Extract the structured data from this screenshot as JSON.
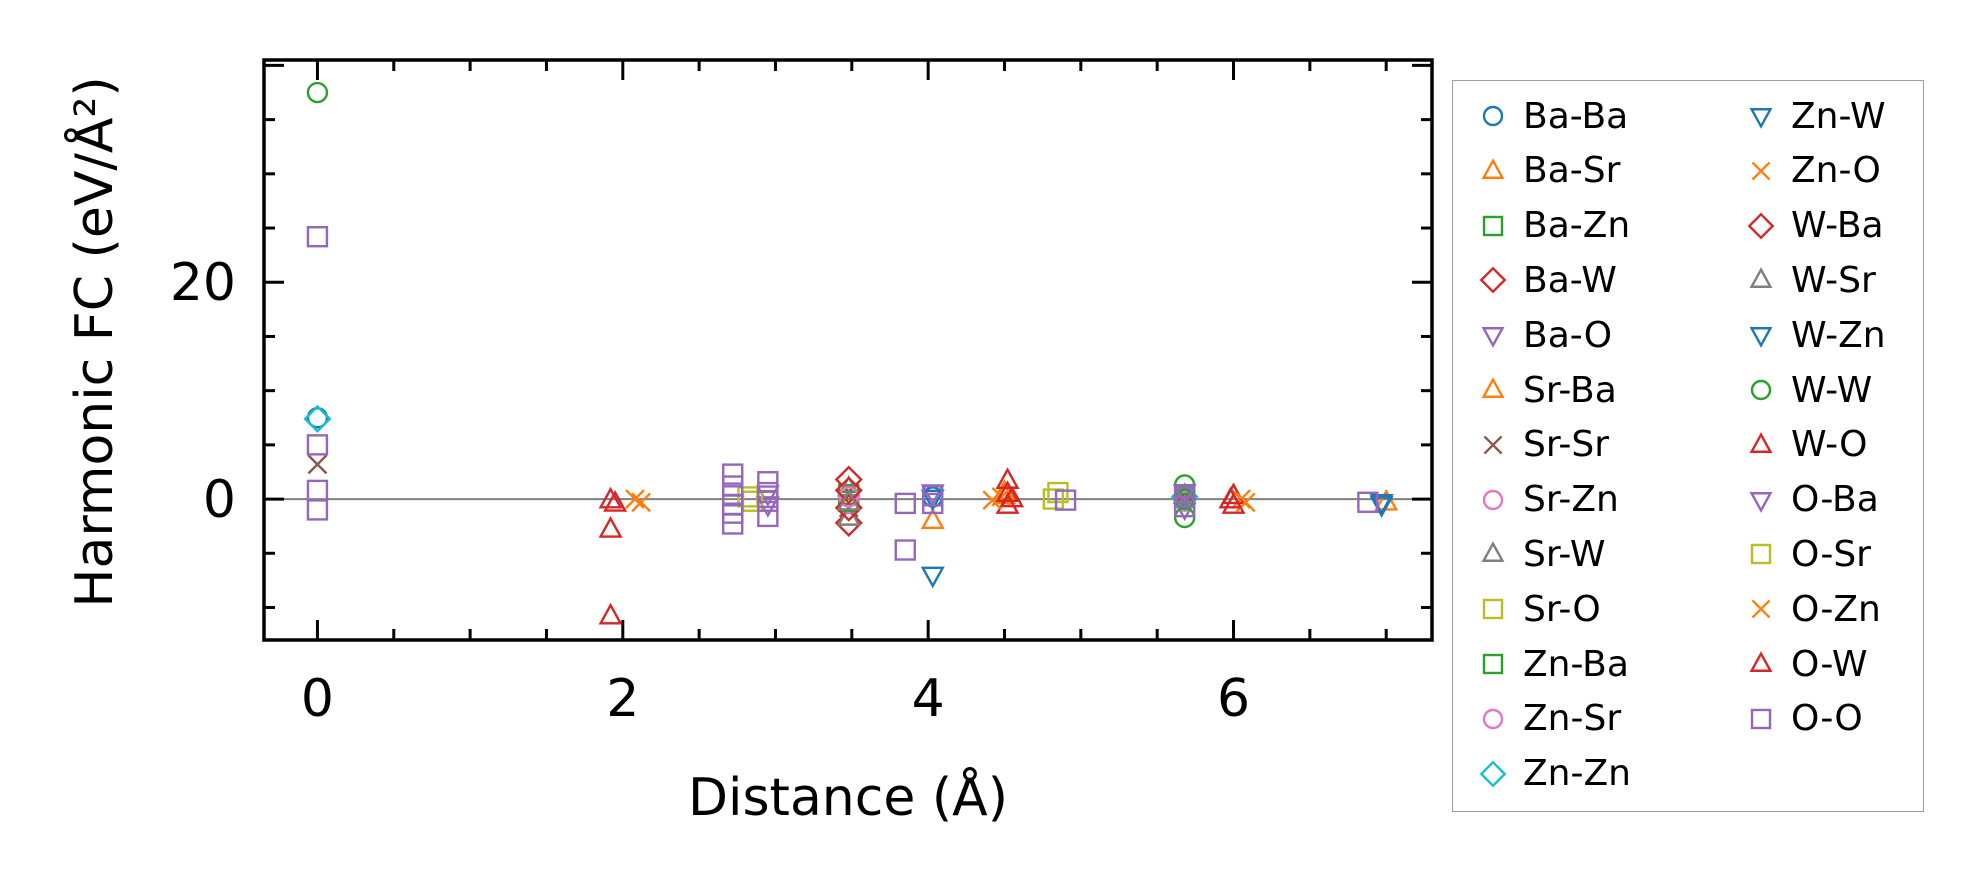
{
  "chart_data": {
    "type": "scatter",
    "title": "",
    "xlabel": "Distance (Å)",
    "ylabel": "Harmonic FC (eV/Å²)",
    "xlim": [
      -0.35,
      7.3
    ],
    "ylim": [
      -13,
      40.5
    ],
    "xticks": [
      0,
      2,
      4,
      6
    ],
    "xtick_labels": [
      "0",
      "2",
      "4",
      "6"
    ],
    "yticks": [
      0,
      20
    ],
    "ytick_labels": [
      "0",
      "20"
    ],
    "zero_line": true,
    "legend_placement": "outside-right",
    "series": [
      {
        "name": "Ba-Ba",
        "marker": "circle",
        "color": "#1f77b4",
        "points": [
          [
            0,
            7.5
          ],
          [
            4.03,
            0.2
          ]
        ]
      },
      {
        "name": "Ba-Sr",
        "marker": "triangle-up",
        "color": "#ff7f0e",
        "points": [
          [
            4.03,
            -2.0
          ],
          [
            4.5,
            0.3
          ]
        ]
      },
      {
        "name": "Ba-Zn",
        "marker": "square",
        "color": "#2ca02c",
        "points": [
          [
            3.48,
            0.4
          ],
          [
            5.68,
            0.2
          ]
        ]
      },
      {
        "name": "Ba-W",
        "marker": "diamond",
        "color": "#d62728",
        "points": [
          [
            3.48,
            1.8
          ],
          [
            3.48,
            -2.2
          ]
        ]
      },
      {
        "name": "Ba-O",
        "marker": "triangle-down",
        "color": "#9467bd",
        "points": [
          [
            2.95,
            0.5
          ],
          [
            4.03,
            0.6
          ],
          [
            5.68,
            -0.8
          ]
        ]
      },
      {
        "name": "Sr-Ba",
        "marker": "triangle-up",
        "color": "#ff7f0e",
        "points": [
          [
            4.5,
            0.6
          ],
          [
            7.0,
            -0.3
          ]
        ]
      },
      {
        "name": "Sr-Sr",
        "marker": "x",
        "color": "#8c564b",
        "points": [
          [
            0,
            3.2
          ],
          [
            3.48,
            -0.8
          ],
          [
            5.68,
            0.5
          ]
        ]
      },
      {
        "name": "Sr-Zn",
        "marker": "circle",
        "color": "#e377c2",
        "points": [
          [
            3.48,
            -0.4
          ],
          [
            5.68,
            -0.2
          ]
        ]
      },
      {
        "name": "Sr-W",
        "marker": "triangle-up",
        "color": "#7f7f7f",
        "points": [
          [
            3.48,
            1.0
          ],
          [
            3.48,
            -1.7
          ]
        ]
      },
      {
        "name": "Sr-O",
        "marker": "square",
        "color": "#bcbd22",
        "points": [
          [
            2.82,
            0.2
          ],
          [
            4.85,
            0.6
          ]
        ]
      },
      {
        "name": "Zn-Ba",
        "marker": "square",
        "color": "#2ca02c",
        "points": [
          [
            3.48,
            -0.2
          ],
          [
            5.68,
            0.4
          ]
        ]
      },
      {
        "name": "Zn-Sr",
        "marker": "circle",
        "color": "#e377c2",
        "points": [
          [
            3.48,
            0.2
          ],
          [
            5.68,
            0.0
          ]
        ]
      },
      {
        "name": "Zn-Zn",
        "marker": "diamond",
        "color": "#17becf",
        "points": [
          [
            0,
            7.4
          ],
          [
            5.68,
            0.2
          ]
        ]
      },
      {
        "name": "Zn-W",
        "marker": "triangle-down",
        "color": "#1f77b4",
        "points": [
          [
            4.03,
            -7.0
          ],
          [
            6.97,
            -0.3
          ]
        ]
      },
      {
        "name": "Zn-O",
        "marker": "x",
        "color": "#ff7f0e",
        "points": [
          [
            2.08,
            0.0
          ],
          [
            4.48,
            0.2
          ],
          [
            6.05,
            0.0
          ]
        ]
      },
      {
        "name": "W-Ba",
        "marker": "diamond",
        "color": "#d62728",
        "points": [
          [
            3.48,
            0.8
          ],
          [
            3.48,
            -0.8
          ]
        ]
      },
      {
        "name": "W-Sr",
        "marker": "triangle-up",
        "color": "#7f7f7f",
        "points": [
          [
            3.48,
            -0.3
          ],
          [
            5.68,
            0.3
          ]
        ]
      },
      {
        "name": "W-Zn",
        "marker": "triangle-down",
        "color": "#1f77b4",
        "points": [
          [
            4.03,
            0.1
          ],
          [
            6.97,
            -0.5
          ]
        ]
      },
      {
        "name": "W-W",
        "marker": "circle",
        "color": "#2ca02c",
        "points": [
          [
            0,
            37.5
          ],
          [
            5.68,
            1.3
          ],
          [
            5.68,
            -1.7
          ],
          [
            5.68,
            0.0
          ]
        ]
      },
      {
        "name": "W-O",
        "marker": "triangle-up",
        "color": "#d62728",
        "points": [
          [
            1.92,
            -0.1
          ],
          [
            1.92,
            -2.8
          ],
          [
            1.92,
            -10.8
          ],
          [
            4.52,
            1.7
          ],
          [
            4.52,
            0.5
          ],
          [
            4.52,
            -0.6
          ],
          [
            6.0,
            0.3
          ],
          [
            6.0,
            -0.6
          ]
        ]
      },
      {
        "name": "O-Ba",
        "marker": "triangle-down",
        "color": "#9467bd",
        "points": [
          [
            2.95,
            -0.5
          ],
          [
            5.68,
            0.6
          ]
        ]
      },
      {
        "name": "O-Sr",
        "marker": "square",
        "color": "#bcbd22",
        "points": [
          [
            2.85,
            -0.2
          ],
          [
            4.82,
            0.0
          ]
        ]
      },
      {
        "name": "O-Zn",
        "marker": "x",
        "color": "#ff7f0e",
        "points": [
          [
            2.12,
            -0.3
          ],
          [
            4.42,
            -0.1
          ],
          [
            6.08,
            -0.3
          ]
        ]
      },
      {
        "name": "O-W",
        "marker": "triangle-up",
        "color": "#d62728",
        "points": [
          [
            1.95,
            -0.4
          ],
          [
            4.55,
            0.0
          ],
          [
            5.98,
            -0.1
          ]
        ]
      },
      {
        "name": "O-O",
        "marker": "square",
        "color": "#9467bd",
        "points": [
          [
            0,
            24.2
          ],
          [
            0,
            5.0
          ],
          [
            0,
            0.8
          ],
          [
            0,
            -1.0
          ],
          [
            2.72,
            2.3
          ],
          [
            2.72,
            1.2
          ],
          [
            2.72,
            0.3
          ],
          [
            2.72,
            -0.5
          ],
          [
            2.72,
            -1.3
          ],
          [
            2.72,
            -2.3
          ],
          [
            2.95,
            1.6
          ],
          [
            2.95,
            0.6
          ],
          [
            2.95,
            -0.2
          ],
          [
            2.95,
            -1.6
          ],
          [
            3.85,
            -0.4
          ],
          [
            3.85,
            -4.7
          ],
          [
            4.03,
            -0.4
          ],
          [
            4.03,
            0.3
          ],
          [
            4.9,
            -0.1
          ],
          [
            5.68,
            -0.7
          ],
          [
            5.68,
            0.2
          ],
          [
            6.88,
            -0.3
          ]
        ]
      }
    ]
  }
}
